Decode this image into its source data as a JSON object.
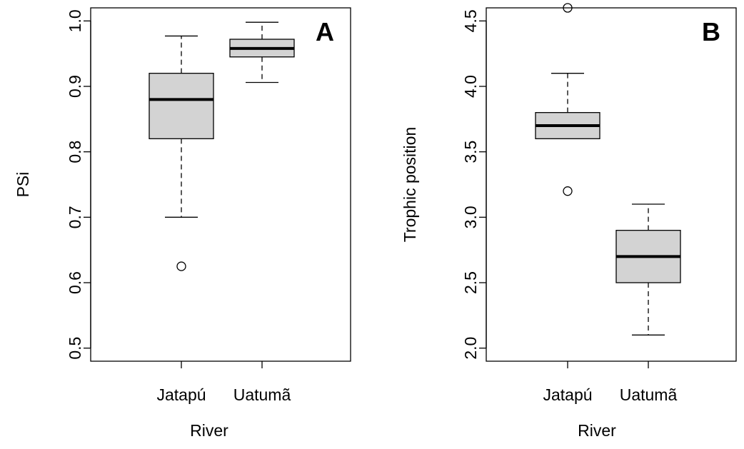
{
  "chart_data": [
    {
      "type": "box",
      "panel_label": "A",
      "xlabel": "River",
      "ylabel": "PSi",
      "ylim": [
        0.5,
        1.0
      ],
      "yticks": [
        "0.5",
        "0.6",
        "0.7",
        "0.8",
        "0.9",
        "1.0"
      ],
      "categories": [
        "Jatapú",
        "Uatumã"
      ],
      "boxes": [
        {
          "category": "Jatapú",
          "whisker_low": 0.7,
          "q1": 0.82,
          "median": 0.88,
          "q3": 0.92,
          "whisker_high": 0.977,
          "outliers": [
            0.625
          ]
        },
        {
          "category": "Uatumã",
          "whisker_low": 0.906,
          "q1": 0.945,
          "median": 0.958,
          "q3": 0.972,
          "whisker_high": 0.998,
          "outliers": []
        }
      ],
      "box_fill": "#d3d3d3",
      "grid": false
    },
    {
      "type": "box",
      "panel_label": "B",
      "xlabel": "River",
      "ylabel": "Trophic position",
      "ylim": [
        2.0,
        4.5
      ],
      "yticks": [
        "2.0",
        "2.5",
        "3.0",
        "3.5",
        "4.0",
        "4.5"
      ],
      "categories": [
        "Jatapú",
        "Uatumã"
      ],
      "boxes": [
        {
          "category": "Jatapú",
          "whisker_low": 3.6,
          "q1": 3.6,
          "median": 3.7,
          "q3": 3.8,
          "whisker_high": 4.1,
          "outliers": [
            3.2,
            4.6
          ]
        },
        {
          "category": "Uatumã",
          "whisker_low": 2.1,
          "q1": 2.5,
          "median": 2.7,
          "q3": 2.9,
          "whisker_high": 3.1,
          "outliers": []
        }
      ],
      "box_fill": "#d3d3d3",
      "grid": false
    }
  ]
}
